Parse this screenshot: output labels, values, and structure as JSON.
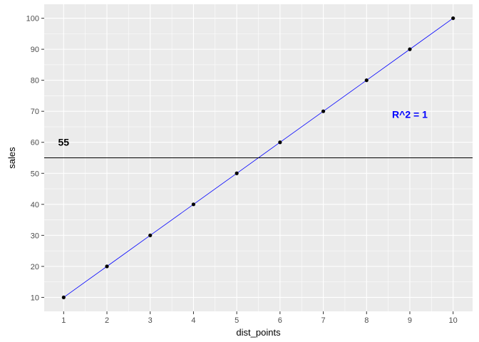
{
  "chart_data": {
    "type": "scatter",
    "title": "",
    "xlabel": "dist_points",
    "ylabel": "sales",
    "xlim": [
      0.55,
      10.45
    ],
    "ylim": [
      5.5,
      104.5
    ],
    "x_ticks": [
      1,
      2,
      3,
      4,
      5,
      6,
      7,
      8,
      9,
      10
    ],
    "y_ticks": [
      10,
      20,
      30,
      40,
      50,
      60,
      70,
      80,
      90,
      100
    ],
    "grid": true,
    "background": "#ebebeb",
    "series": [
      {
        "x": [
          1,
          2,
          3,
          4,
          5,
          6,
          7,
          8,
          9,
          10
        ],
        "y": [
          10,
          20,
          30,
          40,
          50,
          60,
          70,
          80,
          90,
          100
        ],
        "point_color": "#000000",
        "line_color": "#0000ff"
      }
    ],
    "hline": {
      "y": 55,
      "color": "#000000"
    },
    "annotations": [
      {
        "text": "55",
        "x": 1,
        "y": 60,
        "color": "#000000"
      },
      {
        "text": "R^2 = 1",
        "x": 9,
        "y": 69,
        "color": "#0000ff"
      }
    ]
  }
}
